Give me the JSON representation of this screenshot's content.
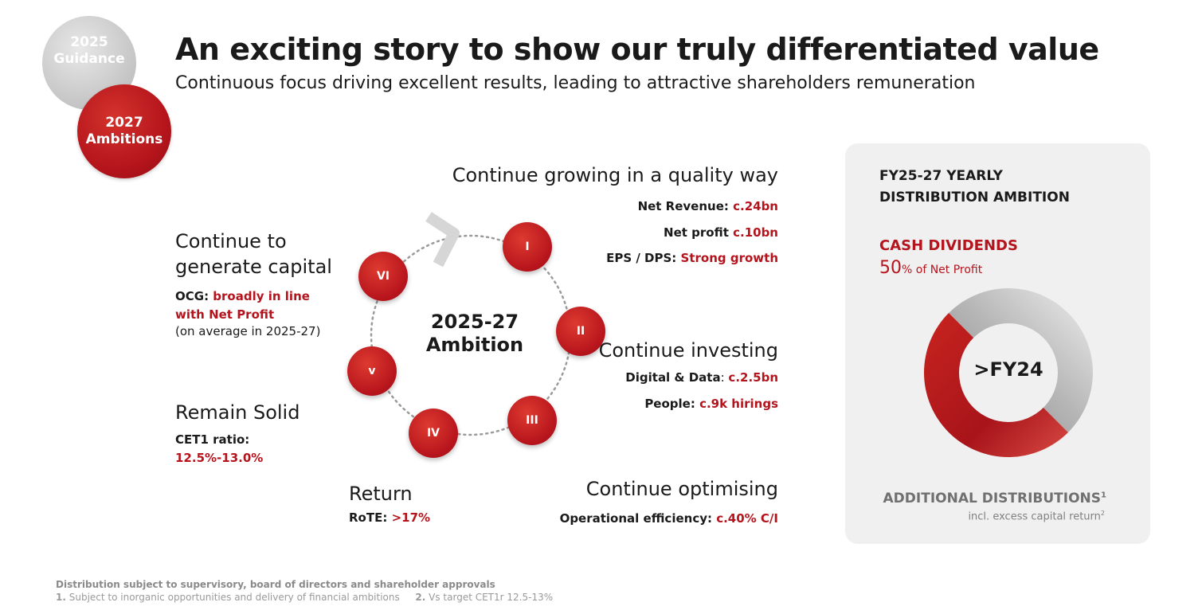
{
  "badges": {
    "guidance": [
      "2025",
      "Guidance"
    ],
    "ambitions": [
      "2027",
      "Ambitions"
    ]
  },
  "header": {
    "title": "An exciting story to show our truly differentiated value",
    "subtitle": "Continuous focus driving excellent results, leading to attractive shareholders remuneration"
  },
  "cycle": {
    "center": [
      "2025-27",
      "Ambition"
    ],
    "nodes": [
      "I",
      "II",
      "III",
      "IV",
      "v",
      "VI"
    ]
  },
  "grow": {
    "heading": "Continue growing in a quality way",
    "net_revenue_label": "Net Revenue: ",
    "net_revenue_value": "c.24bn",
    "net_profit_label": "Net profit ",
    "net_profit_value": "c.10bn",
    "eps_label": "EPS / DPS: ",
    "eps_value": "Strong growth"
  },
  "invest": {
    "heading": "Continue investing",
    "digital_label": "Digital & Data",
    "digital_sep": ": ",
    "digital_value": "c.2.5bn",
    "people_label": "People: ",
    "people_value": "c.9k hirings"
  },
  "optimise": {
    "heading": "Continue optimising",
    "eff_label": "Operational efficiency: ",
    "eff_value": "c.40% C/I"
  },
  "capital": {
    "heading_1": "Continue to",
    "heading_2": "generate capital",
    "ocg_label": "OCG: ",
    "ocg_value_1": "broadly in line",
    "ocg_value_2": "with Net Profit",
    "note": "(on average in 2025-27)"
  },
  "solid": {
    "heading": "Remain Solid",
    "cet1_label": "CET1 ratio:",
    "cet1_value": "12.5%-13.0%"
  },
  "return": {
    "heading": "Return",
    "rote_label": "RoTE: ",
    "rote_value": ">17%"
  },
  "panel": {
    "title_1": "FY25-27 YEARLY",
    "title_2": "DISTRIBUTION AMBITION",
    "cash_label": "CASH DIVIDENDS",
    "pct_value": "50",
    "pct_suffix": "% of Net Profit",
    "donut_center": ">FY24",
    "additional": "ADDITIONAL DISTRIBUTIONS",
    "additional_sup": "1",
    "excess": "incl. excess capital return",
    "excess_sup": "2"
  },
  "donut_data": {
    "cash_dividends_pct": 50,
    "additional_pct": 50,
    "colors": {
      "cash": "#b5141d",
      "additional": "#a8a8a8"
    }
  },
  "footer": {
    "line1": "Distribution subject to supervisory, board of directors and shareholder approvals",
    "note1_num": "1.",
    "note1_text": " Subject to inorganic opportunities and delivery of financial ambitions",
    "note2_num": "2.",
    "note2_text": " Vs target CET1r 12.5-13%"
  },
  "colors": {
    "accent": "#b5141d",
    "panel_bg": "#f0f0f0",
    "grey_badge": "#c4c4c4"
  }
}
